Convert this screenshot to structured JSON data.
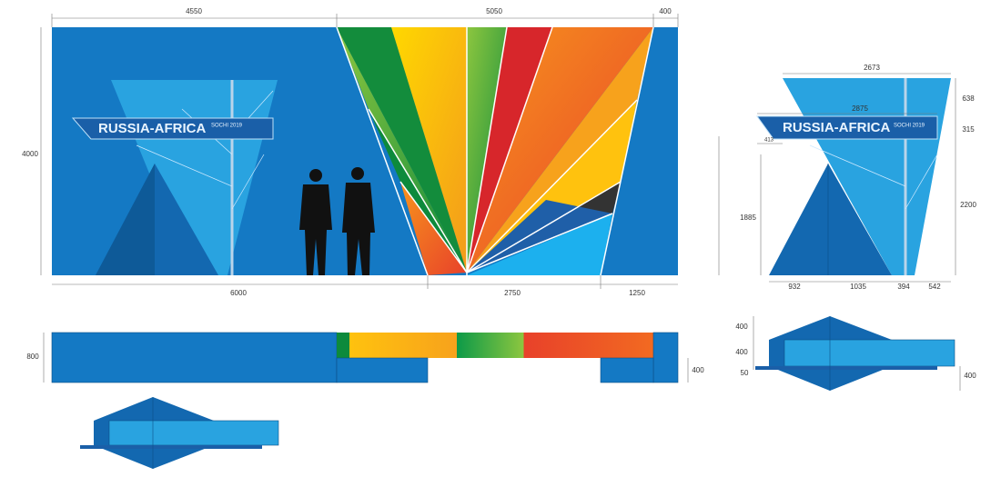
{
  "signage": {
    "brand": "RUSSIA-AFRICA",
    "event": "SOCHI 2019"
  },
  "front_elevation": {
    "top": [
      4550,
      5050,
      400
    ],
    "height": 4000,
    "bottom": [
      6000,
      2750,
      1250
    ]
  },
  "plan_view": {
    "depth": 800,
    "step": 400
  },
  "side_elevation": {
    "top_width": 2673,
    "banner_width": 2875,
    "banner_offset": 413,
    "right": [
      638,
      315,
      2200
    ],
    "left_height": 1885,
    "bottom": [
      932,
      1035,
      394,
      542
    ]
  },
  "side_plan": {
    "left": [
      400,
      400,
      50
    ],
    "right": 400
  }
}
